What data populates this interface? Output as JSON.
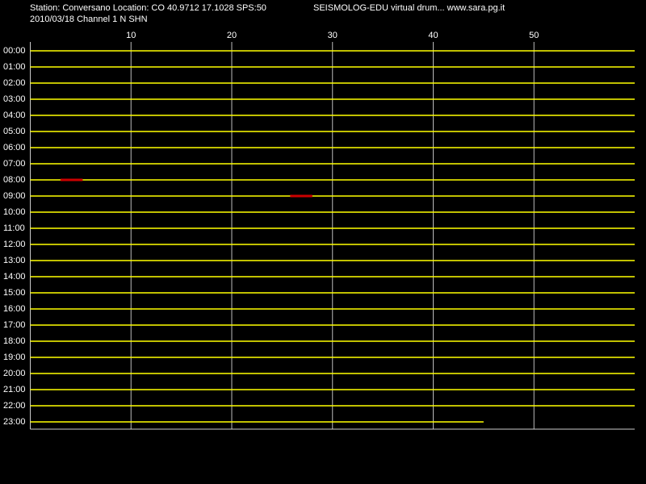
{
  "chart_data": {
    "type": "helicorder",
    "title": "Station: Conversano Location: CO 40.9712 17.1028 SPS:50",
    "subtitle": "SEISMOLOG-EDU virtual drum... www.sara.pg.it",
    "date_line": "2010/03/18  Channel 1 N SHN",
    "xlim": [
      0,
      60
    ],
    "xticks": [
      10,
      20,
      30,
      40,
      50
    ],
    "grid": true,
    "trace_color": "#ffff00",
    "event_color": "#cc0000",
    "rows": [
      {
        "label": "00:00",
        "end": 60
      },
      {
        "label": "01:00",
        "end": 60
      },
      {
        "label": "02:00",
        "end": 60
      },
      {
        "label": "03:00",
        "end": 60
      },
      {
        "label": "04:00",
        "end": 60
      },
      {
        "label": "05:00",
        "end": 60
      },
      {
        "label": "06:00",
        "end": 60
      },
      {
        "label": "07:00",
        "end": 60
      },
      {
        "label": "08:00",
        "end": 60,
        "events": [
          [
            3,
            5.2
          ]
        ]
      },
      {
        "label": "09:00",
        "end": 60,
        "events": [
          [
            25.8,
            28
          ]
        ]
      },
      {
        "label": "10:00",
        "end": 60
      },
      {
        "label": "11:00",
        "end": 60
      },
      {
        "label": "12:00",
        "end": 60
      },
      {
        "label": "13:00",
        "end": 60
      },
      {
        "label": "14:00",
        "end": 60
      },
      {
        "label": "15:00",
        "end": 60
      },
      {
        "label": "16:00",
        "end": 60
      },
      {
        "label": "17:00",
        "end": 60
      },
      {
        "label": "18:00",
        "end": 60
      },
      {
        "label": "19:00",
        "end": 60
      },
      {
        "label": "20:00",
        "end": 60
      },
      {
        "label": "21:00",
        "end": 60
      },
      {
        "label": "22:00",
        "end": 60
      },
      {
        "label": "23:00",
        "end": 45
      }
    ]
  }
}
